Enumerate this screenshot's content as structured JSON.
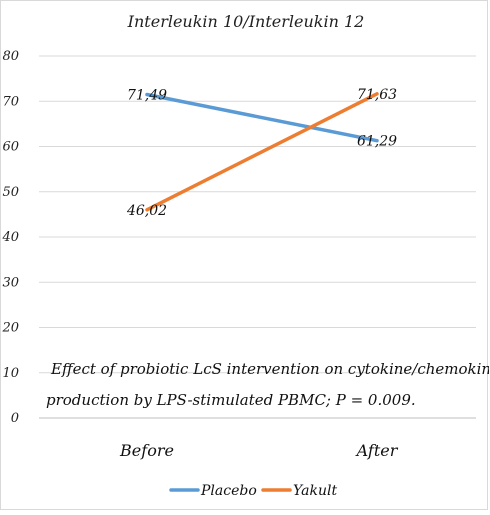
{
  "chart_data": {
    "type": "line",
    "title": "Interleukin 10/Interleukin 12",
    "categories": [
      "Before",
      "After"
    ],
    "series": [
      {
        "name": "Placebo",
        "values": [
          71.49,
          61.29
        ],
        "labels": [
          "71,49",
          "61,29"
        ],
        "color": "#5b9bd5"
      },
      {
        "name": "Yakult",
        "values": [
          46.02,
          71.63
        ],
        "labels": [
          "46,02",
          "71,63"
        ],
        "color": "#ed7d31"
      }
    ],
    "ylim": [
      0,
      80
    ],
    "yticks": [
      0,
      10,
      20,
      30,
      40,
      50,
      60,
      70,
      80
    ],
    "grid": true,
    "legend": "bottom",
    "xlabel": "",
    "ylabel": "",
    "annotation": {
      "line1": "Effect of probiotic LcS intervention on cytokine/chemokine",
      "line2": "production by LPS-stimulated PBMC; P = 0.009."
    }
  }
}
